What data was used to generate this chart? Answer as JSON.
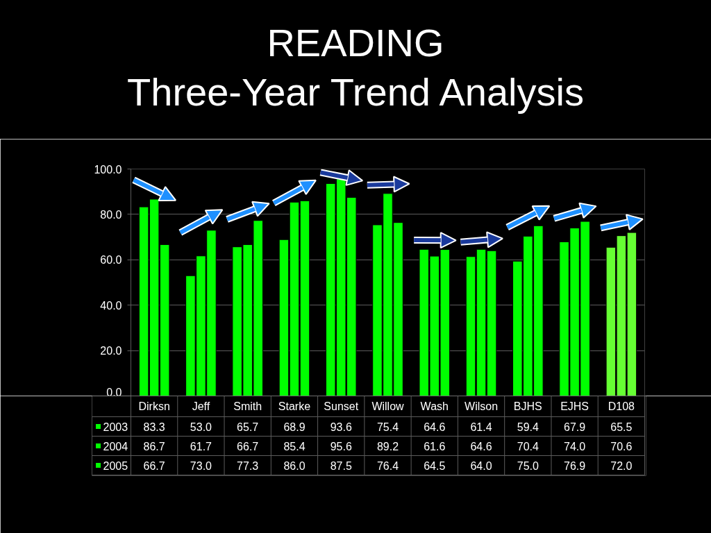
{
  "chart_data": {
    "type": "bar",
    "title": "READING",
    "subtitle": "Three-Year Trend Analysis",
    "categories": [
      "Dirksn",
      "Jeff",
      "Smith",
      "Starke",
      "Sunset",
      "Willow",
      "Wash",
      "Wilson",
      "BJHS",
      "EJHS",
      "D108"
    ],
    "series": [
      {
        "name": "2003",
        "color": "#00ff00",
        "colors": [
          "#00ff00",
          "#00ff00",
          "#00ff00",
          "#00ff00",
          "#00ff00",
          "#00ff00",
          "#00ff00",
          "#00ff00",
          "#00ff00",
          "#00ff00",
          "#66ff33"
        ],
        "values": [
          83.3,
          53.0,
          65.7,
          68.9,
          93.6,
          75.4,
          64.6,
          61.4,
          59.4,
          67.9,
          65.5
        ],
        "value_labels": [
          "83.3",
          "53.0",
          "65.7",
          "68.9",
          "93.6",
          "75.4",
          "64.6",
          "61.4",
          "59.4",
          "67.9",
          "65.5"
        ]
      },
      {
        "name": "2004",
        "color": "#00ff00",
        "colors": [
          "#00ff00",
          "#00ff00",
          "#00ff00",
          "#00ff00",
          "#00ff00",
          "#00ff00",
          "#00ff00",
          "#00ff00",
          "#00ff00",
          "#00ff00",
          "#66ff33"
        ],
        "values": [
          86.7,
          61.7,
          66.7,
          85.4,
          95.6,
          89.2,
          61.6,
          64.6,
          70.4,
          74.0,
          70.6
        ],
        "value_labels": [
          "86.7",
          "61.7",
          "66.7",
          "85.4",
          "95.6",
          "89.2",
          "61.6",
          "64.6",
          "70.4",
          "74.0",
          "70.6"
        ]
      },
      {
        "name": "2005",
        "color": "#00ff00",
        "colors": [
          "#00ff00",
          "#00ff00",
          "#00ff00",
          "#00ff00",
          "#00ff00",
          "#00ff00",
          "#00ff00",
          "#00ff00",
          "#00ff00",
          "#00ff00",
          "#66ff33"
        ],
        "values": [
          66.7,
          73.0,
          77.3,
          86.0,
          87.5,
          76.4,
          64.5,
          64.0,
          75.0,
          76.9,
          72.0
        ],
        "value_labels": [
          "66.7",
          "73.0",
          "77.3",
          "86.0",
          "87.5",
          "76.4",
          "64.5",
          "64.0",
          "75.0",
          "76.9",
          "72.0"
        ]
      }
    ],
    "ylim": [
      0,
      100
    ],
    "yticks": [
      {
        "value": 0,
        "label": "0.0"
      },
      {
        "value": 20,
        "label": "20.0"
      },
      {
        "value": 40,
        "label": "40.0"
      },
      {
        "value": 60,
        "label": "60.0"
      },
      {
        "value": 80,
        "label": "80.0"
      },
      {
        "value": 100,
        "label": "100.0"
      }
    ],
    "grid": "y",
    "legend": "bottom"
  }
}
